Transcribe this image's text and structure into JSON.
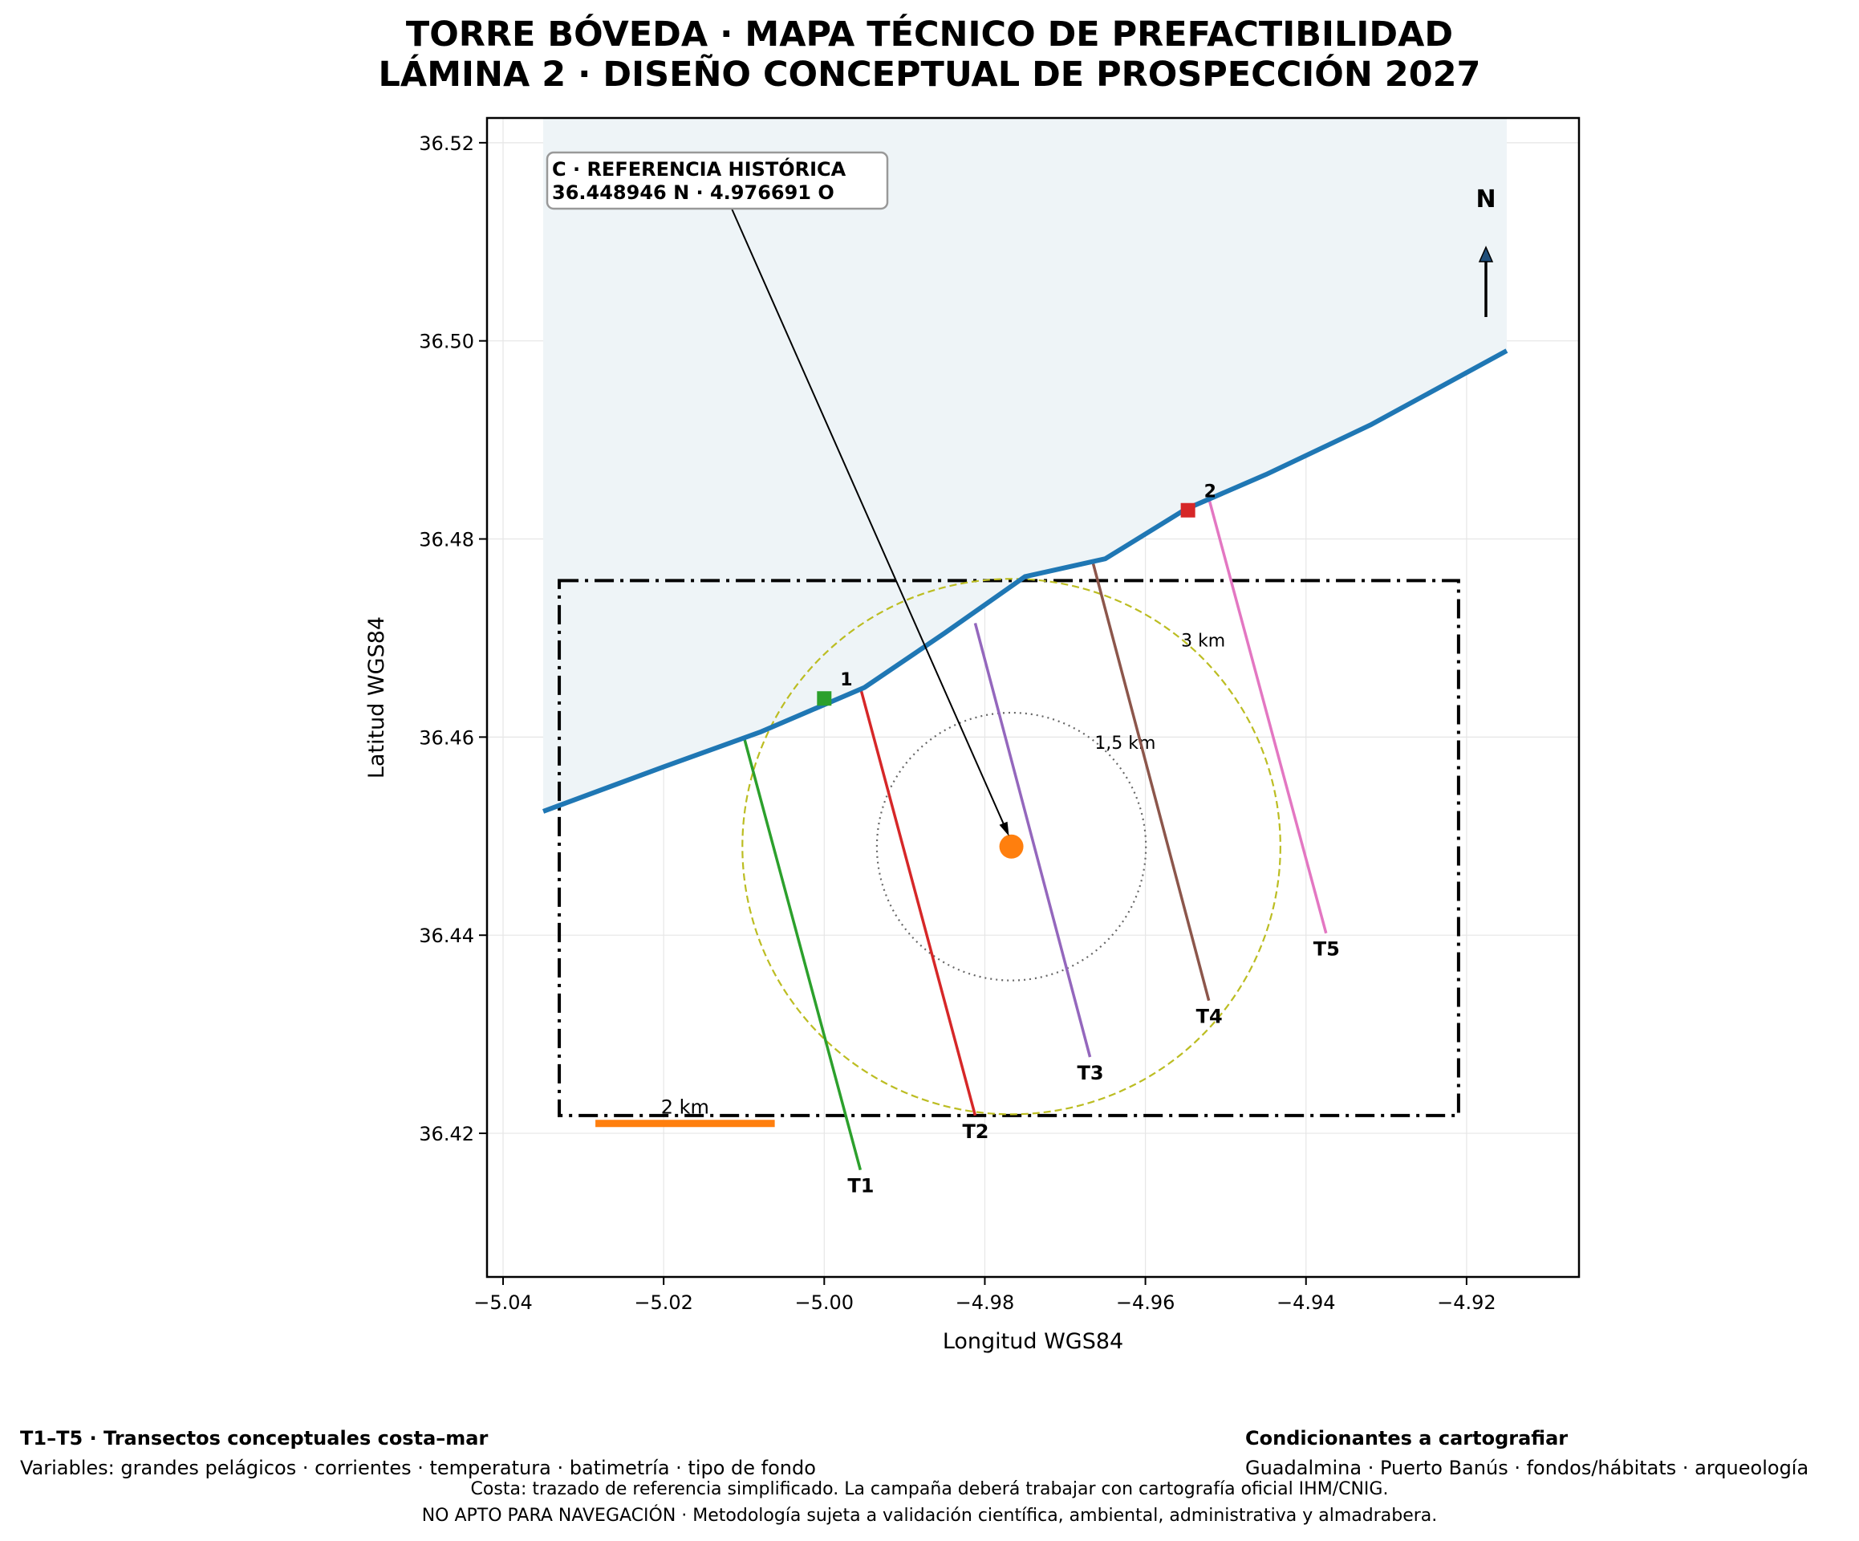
{
  "title": {
    "line1": "TORRE BÓVEDA · MAPA TÉCNICO DE PREFACTIBILIDAD",
    "line2": "LÁMINA 2 · DISEÑO CONCEPTUAL DE PROSPECCIÓN 2027"
  },
  "axes": {
    "xlabel": "Longitud WGS84",
    "ylabel": "Latitud WGS84",
    "xlim": [
      -5.042,
      -4.906
    ],
    "ylim": [
      36.4055,
      36.5225
    ],
    "xticks": [
      -5.04,
      -5.02,
      -5.0,
      -4.98,
      -4.96,
      -4.94,
      -4.92
    ],
    "xtick_labels": [
      "−5.04",
      "−5.02",
      "−5.00",
      "−4.98",
      "−4.96",
      "−4.94",
      "−4.92"
    ],
    "yticks": [
      36.42,
      36.44,
      36.46,
      36.48,
      36.5,
      36.52
    ],
    "ytick_labels": [
      "36.42",
      "36.44",
      "36.46",
      "36.48",
      "36.50",
      "36.52"
    ],
    "grid": true
  },
  "map": {
    "land_color": "#eef4f7",
    "coast_color": "#1f77b4",
    "coastline": [
      [
        -5.035,
        36.4525
      ],
      [
        -5.02,
        36.457
      ],
      [
        -5.008,
        36.4605
      ],
      [
        -4.995,
        36.465
      ],
      [
        -4.985,
        36.4705
      ],
      [
        -4.975,
        36.4762
      ],
      [
        -4.965,
        36.478
      ],
      [
        -4.955,
        36.483
      ],
      [
        -4.945,
        36.4865
      ],
      [
        -4.932,
        36.4915
      ],
      [
        -4.915,
        36.499
      ]
    ],
    "study_area": {
      "lon": [
        -5.033,
        -4.921
      ],
      "lat": [
        36.4218,
        36.4758
      ]
    },
    "center": {
      "lon": -4.976691,
      "lat": 36.448946,
      "color": "#ff7f0e"
    },
    "circles": [
      {
        "radius_km": 1.5,
        "label": "1,5 km",
        "color": "#666666"
      },
      {
        "radius_km": 3,
        "label": "3 km",
        "color": "#bcbd22"
      }
    ],
    "transects": [
      {
        "label": "T1",
        "color": "#2ca02c",
        "start": [
          -5.01,
          36.46
        ],
        "end": [
          -4.9955,
          36.4163
        ]
      },
      {
        "label": "T2",
        "color": "#d62728",
        "start": [
          -4.9955,
          36.465
        ],
        "end": [
          -4.9812,
          36.4218
        ]
      },
      {
        "label": "T3",
        "color": "#9467bd",
        "start": [
          -4.9812,
          36.4715
        ],
        "end": [
          -4.9669,
          36.4277
        ]
      },
      {
        "label": "T4",
        "color": "#8c564b",
        "start": [
          -4.9665,
          36.4775
        ],
        "end": [
          -4.9521,
          36.4334
        ]
      },
      {
        "label": "T5",
        "color": "#e377c2",
        "start": [
          -4.952,
          36.4838
        ],
        "end": [
          -4.9375,
          36.4402
        ]
      }
    ],
    "points": [
      {
        "label": "1",
        "color": "#2ca02c",
        "lon": -5.0,
        "lat": 36.4639
      },
      {
        "label": "2",
        "color": "#d62728",
        "lon": -4.9547,
        "lat": 36.4829
      }
    ],
    "reference_box": {
      "line1": "C · REFERENCIA HISTÓRICA",
      "line2": "36.448946 N · 4.976691 O"
    },
    "scale_bar": {
      "label": "2 km",
      "color": "#ff7f0e",
      "length_km": 2
    },
    "north_arrow": {
      "label": "N"
    }
  },
  "footer": {
    "left_title": "T1–T5 · Transectos conceptuales costa–mar",
    "left_text": "Variables: grandes pelágicos · corrientes · temperatura · batimetría · tipo de fondo",
    "right_title": "Condicionantes a cartografiar",
    "right_text": "Guadalmina · Puerto Banús · fondos/hábitats · arqueología",
    "note1": "Costa: trazado de referencia simplificado. La campaña deberá trabajar con cartografía oficial IHM/CNIG.",
    "note2": "NO APTO PARA NAVEGACIÓN · Metodología sujeta a validación científica, ambiental, administrativa y almadrabera."
  }
}
